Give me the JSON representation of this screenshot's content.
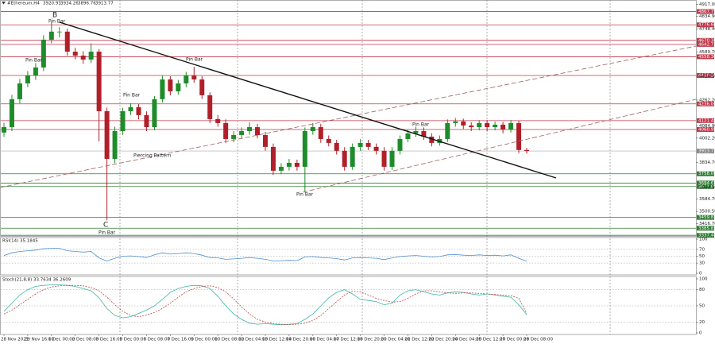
{
  "header": {
    "symbol": "#Ethereum,H4"
  },
  "chart_data": [
    {
      "type": "candlestick",
      "categories": [
        "28 Nov 2021",
        null,
        null,
        "29 Nov 16:00",
        null,
        null,
        "1 Dec 00:00",
        null,
        null,
        "2 Dec 08:00",
        null,
        null,
        "3 Dec 16:00",
        null,
        null,
        "5 Dec 00:00",
        null,
        null,
        "6 Dec 08:00",
        null,
        null,
        "7 Dec 16:00",
        null,
        null,
        "9 Dec 00:00",
        null,
        null,
        "10 Dec 08:00",
        null,
        null,
        "12 Dec 04:00",
        null,
        null,
        "13 Dec 12:00",
        null,
        null,
        "14 Dec 20:00",
        null,
        null,
        "16 Dec 04:00",
        null,
        null,
        "17 Dec 12:00",
        null,
        null,
        "18 Dec 20:00",
        null,
        null,
        "20 Dec 04:00",
        null,
        null,
        "21 Dec 12:00",
        null,
        null,
        "22 Dec 20:00",
        null,
        null,
        "24 Dec 04:00",
        null,
        null,
        "25 Dec 12:00",
        null,
        null,
        "27 Dec 00:00",
        null,
        null,
        "28 Dec 08:00"
      ],
      "open": [
        4040,
        4077,
        4268,
        4376,
        4430,
        4485,
        4675,
        4730,
        4730,
        4593,
        4566,
        4539,
        4593,
        4186,
        3860,
        4050,
        4186,
        4213,
        4159,
        4077,
        4268,
        4403,
        4322,
        4376,
        4430,
        4403,
        4295,
        4132,
        4105,
        3996,
        4023,
        4050,
        4077,
        4023,
        3942,
        3779,
        3806,
        3833,
        3806,
        4050,
        4077,
        3996,
        3969,
        3915,
        3806,
        3942,
        3969,
        3942,
        3915,
        3806,
        3915,
        3996,
        4034,
        4050,
        4012,
        3969,
        3996,
        4105,
        4116,
        4088,
        4077,
        4105,
        4077,
        4094,
        4061,
        4105,
        3920.93
      ],
      "high": [
        4107,
        4298,
        4406,
        4460,
        4515,
        4705,
        4800,
        4760,
        4750,
        4620,
        4596,
        4650,
        4610,
        4210,
        4080,
        4210,
        4240,
        4235,
        4185,
        4290,
        4430,
        4425,
        4400,
        4455,
        4490,
        4425,
        4315,
        4160,
        4130,
        4050,
        4075,
        4110,
        4100,
        4045,
        3965,
        3830,
        3860,
        3855,
        4075,
        4105,
        4100,
        4020,
        3990,
        3940,
        3965,
        3995,
        3990,
        3965,
        3940,
        3940,
        4020,
        4060,
        4080,
        4075,
        4035,
        4020,
        4130,
        4140,
        4135,
        4110,
        4125,
        4125,
        4115,
        4112,
        4125,
        4120,
        3934.26
      ],
      "low": [
        4010,
        4050,
        4240,
        4350,
        4400,
        4460,
        4650,
        4690,
        4565,
        4540,
        4510,
        4515,
        3980,
        3440,
        3830,
        4025,
        4160,
        4130,
        4050,
        4055,
        4245,
        4295,
        4300,
        4350,
        4380,
        4270,
        4105,
        4080,
        3970,
        3975,
        4000,
        4025,
        4000,
        3915,
        3750,
        3755,
        3780,
        3780,
        3630,
        4025,
        3970,
        3945,
        3890,
        3780,
        3785,
        3915,
        3920,
        3890,
        3780,
        3785,
        3890,
        3975,
        4010,
        3990,
        3945,
        3950,
        3975,
        4080,
        4065,
        4050,
        4055,
        4050,
        4055,
        4035,
        4040,
        3900,
        3896.76
      ],
      "close": [
        4077,
        4268,
        4376,
        4430,
        4485,
        4675,
        4730,
        4730,
        4593,
        4566,
        4539,
        4593,
        4186,
        3860,
        4050,
        4186,
        4213,
        4159,
        4077,
        4268,
        4403,
        4322,
        4376,
        4430,
        4403,
        4295,
        4132,
        4105,
        3996,
        4023,
        4050,
        4077,
        4023,
        3942,
        3779,
        3806,
        3833,
        3806,
        4050,
        4077,
        3996,
        3969,
        3915,
        3806,
        3942,
        3969,
        3942,
        3915,
        3806,
        3915,
        3996,
        4034,
        4050,
        4012,
        3969,
        3996,
        4105,
        4116,
        4088,
        4077,
        4105,
        4077,
        4094,
        4061,
        4105,
        3920.93,
        3913.77
      ],
      "up_color": "#1e8c2a",
      "down_color": "#b0202a",
      "ylim": [
        3333,
        4930
      ],
      "yticks": [
        {
          "value": 4917,
          "label": "4917.00"
        },
        {
          "value": 4834.9,
          "label": "4834.90"
        },
        {
          "value": 4748.4,
          "label": "4748.40"
        },
        {
          "value": 4589.7,
          "label": "4589.70"
        },
        {
          "value": 4424.5,
          "label": "4424.50"
        },
        {
          "value": 4262.2,
          "label": "4262.20"
        },
        {
          "value": 4084.9,
          "label": "4084.90"
        },
        {
          "value": 4002.2,
          "label": "4002.20"
        },
        {
          "value": 3834.7,
          "label": "3834.70"
        },
        {
          "value": 3664.9,
          "label": "3664.90"
        },
        {
          "value": 3584.7,
          "label": "3584.70"
        },
        {
          "value": 3500.5,
          "label": "3500.50"
        },
        {
          "value": 3416.7,
          "label": "3416.70"
        }
      ],
      "levels": [
        {
          "value": 4867.79,
          "label": "4867.79",
          "color": "#c0394a"
        },
        {
          "value": 4776.6,
          "label": "4776.60",
          "color": "#c0394a"
        },
        {
          "value": 4670.3,
          "label": "4670.30",
          "color": "#c0394a"
        },
        {
          "value": 4642.73,
          "label": "4642.73",
          "color": "#c0394a"
        },
        {
          "value": 4558.3,
          "label": "4558.30",
          "color": "#c0394a"
        },
        {
          "value": 4430.3,
          "label": "4430.30",
          "color": "#c0394a"
        },
        {
          "value": 4236,
          "label": "4236.00",
          "color": "#c0394a"
        },
        {
          "value": 4121.48,
          "label": "4121.48",
          "color": "#c0394a"
        },
        {
          "value": 4060.95,
          "label": "4060.95",
          "color": "#c0394a"
        },
        {
          "value": 3758.06,
          "label": "3758.06",
          "color": "#2e7d32"
        },
        {
          "value": 3694.67,
          "label": "3694.67",
          "color": "#2e7d32"
        },
        {
          "value": 3671.09,
          "label": "3671.09",
          "color": "#2e7d32"
        },
        {
          "value": 3459.82,
          "label": "3459.82",
          "color": "#2e7d32"
        },
        {
          "value": 3385.83,
          "label": "3385.83",
          "color": "#2e7d32"
        },
        {
          "value": 3337.48,
          "label": "3337.48",
          "color": "#2e7d32"
        }
      ],
      "current_price": 3913.77,
      "annotations": [
        "B",
        "Pin Bar",
        "Pin Bar",
        "Pin Bar",
        "Pin Bar",
        "Pin Bar",
        "Piercing Pattern",
        "Pin Bar",
        "C",
        "Pin Bar"
      ]
    },
    {
      "type": "line",
      "title": "RSI(14) 35.1845",
      "color": "#4a8ed0",
      "values": [
        52,
        60,
        64,
        66,
        68,
        72,
        73,
        73,
        66,
        64,
        62,
        64,
        45,
        36,
        44,
        50,
        51,
        49,
        46,
        54,
        60,
        56,
        58,
        60,
        58,
        53,
        46,
        45,
        41,
        42,
        44,
        46,
        44,
        41,
        36,
        37,
        38,
        37,
        48,
        49,
        46,
        45,
        43,
        39,
        45,
        46,
        45,
        44,
        40,
        45,
        49,
        51,
        52,
        50,
        48,
        49,
        54,
        55,
        53,
        52,
        54,
        52,
        53,
        51,
        54,
        44,
        35.1845
      ],
      "ylim": [
        0,
        100
      ],
      "yticks": [
        100,
        70,
        50,
        30,
        0
      ]
    },
    {
      "type": "line",
      "title": "Stoch(21,8,8) 33.7634 36.2609",
      "series": [
        {
          "color": "#3fb5a5",
          "values": [
            40,
            55,
            70,
            80,
            86,
            88,
            89,
            89,
            88,
            86,
            82,
            78,
            65,
            45,
            32,
            28,
            30,
            36,
            42,
            50,
            62,
            75,
            82,
            86,
            88,
            87,
            82,
            68,
            50,
            35,
            25,
            18,
            16,
            17,
            16,
            15,
            16,
            17,
            25,
            35,
            50,
            65,
            75,
            80,
            72,
            62,
            60,
            58,
            52,
            55,
            70,
            78,
            80,
            76,
            72,
            70,
            74,
            76,
            75,
            72,
            70,
            72,
            70,
            68,
            66,
            52,
            33.7634
          ]
        },
        {
          "color": "#c04848",
          "values": [
            35,
            42,
            52,
            62,
            72,
            80,
            85,
            87,
            88,
            88,
            87,
            84,
            78,
            66,
            52,
            40,
            32,
            30,
            33,
            38,
            45,
            55,
            66,
            76,
            82,
            86,
            87,
            84,
            76,
            63,
            48,
            35,
            25,
            20,
            17,
            16,
            15,
            16,
            18,
            23,
            32,
            45,
            58,
            70,
            77,
            76,
            70,
            64,
            60,
            57,
            58,
            64,
            72,
            78,
            78,
            76,
            74,
            73,
            74,
            74,
            73,
            72,
            71,
            70,
            69,
            64,
            36.2609
          ]
        }
      ],
      "ylim": [
        0,
        100
      ],
      "yticks": [
        100,
        80,
        50,
        20,
        0
      ]
    }
  ]
}
